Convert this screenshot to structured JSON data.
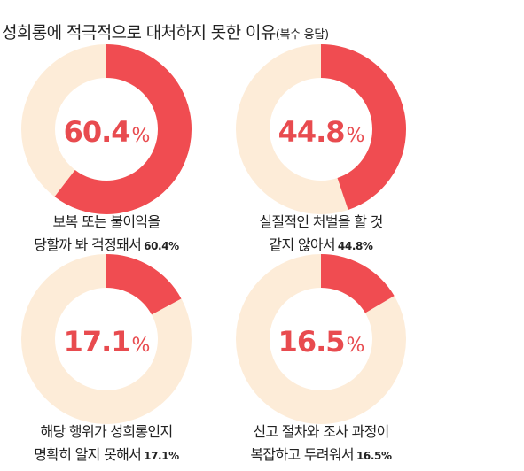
{
  "title": "성희롱에 적극적으로 대처하지 못한 이유",
  "subtitle": "(복수 응답)",
  "colors": {
    "accent": "#f04c51",
    "track": "#fdecd8",
    "percent_text": "#e84b4f"
  },
  "chart_data": {
    "type": "pie",
    "title": "성희롱에 적극적으로 대처하지 못한 이유",
    "subtitle": "(복수 응답)",
    "charts": [
      {
        "value": 60.4,
        "display": "60.4",
        "unit": "%",
        "label_line1": "보복 또는 불이익을",
        "label_line2": "당할까 봐 걱정돼서",
        "label_value": "60.4%"
      },
      {
        "value": 44.8,
        "display": "44.8",
        "unit": "%",
        "label_line1": "실질적인 처벌을 할 것",
        "label_line2": "같지 않아서",
        "label_value": "44.8%"
      },
      {
        "value": 17.1,
        "display": "17.1",
        "unit": "%",
        "label_line1": "해당 행위가 성희롱인지",
        "label_line2": "명확히 알지 못해서",
        "label_value": "17.1%"
      },
      {
        "value": 16.5,
        "display": "16.5",
        "unit": "%",
        "label_line1": "신고 절차와 조사 과정이",
        "label_line2": "복잡하고 두려워서",
        "label_value": "16.5%"
      }
    ]
  }
}
